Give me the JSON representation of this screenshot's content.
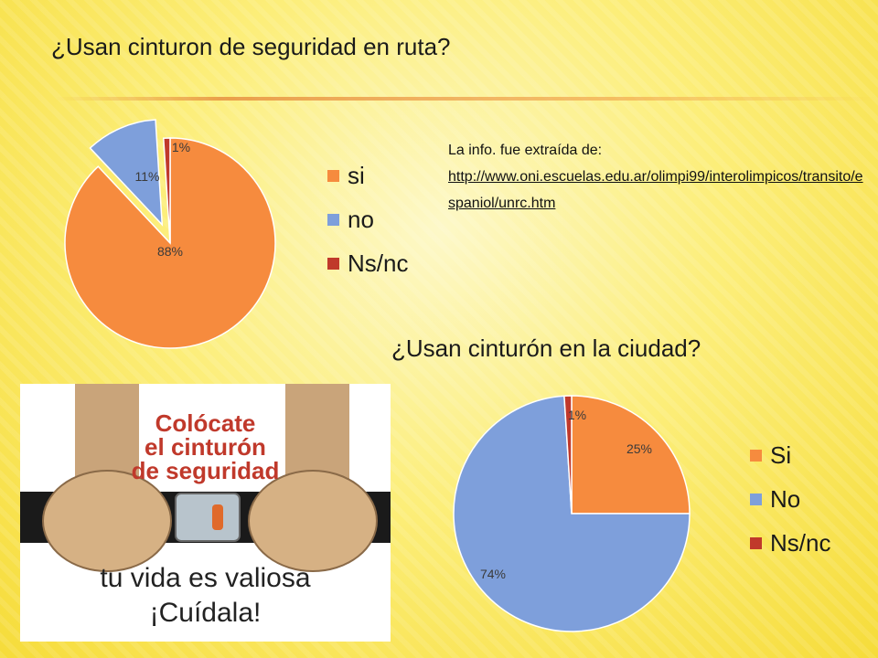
{
  "slide": {
    "title_route": "¿Usan cinturon de seguridad en ruta?",
    "title_city": "¿Usan cinturón en la ciudad?",
    "source_label": "La info. fue extraída de:",
    "source_url": "http://www.oni.escuelas.edu.ar/olimpi99/interolimpicos/transito/espaniol/unrc.htm"
  },
  "poster": {
    "line1": "Colócate",
    "line2": "el cinturón",
    "line3": "de seguridad",
    "line4": "tu vida es valiosa",
    "line5": "¡Cuídala!"
  },
  "chart_data": [
    {
      "type": "pie",
      "title": "¿Usan cinturon de seguridad en ruta?",
      "categories": [
        "si",
        "no",
        "Ns/nc"
      ],
      "values": [
        88,
        11,
        1
      ],
      "labels": [
        "88%",
        "11%",
        "1%"
      ],
      "colors": [
        "#f68b3e",
        "#7e9fdb",
        "#c0392b"
      ],
      "exploded": [
        false,
        true,
        false
      ],
      "legend": "right"
    },
    {
      "type": "pie",
      "title": "¿Usan cinturón en la ciudad?",
      "categories": [
        "Si",
        "No",
        "Ns/nc"
      ],
      "values": [
        25,
        74,
        1
      ],
      "labels": [
        "25%",
        "74%",
        "1%"
      ],
      "colors": [
        "#f68b3e",
        "#7e9fdb",
        "#c0392b"
      ],
      "exploded": [
        false,
        false,
        false
      ],
      "legend": "right"
    }
  ]
}
